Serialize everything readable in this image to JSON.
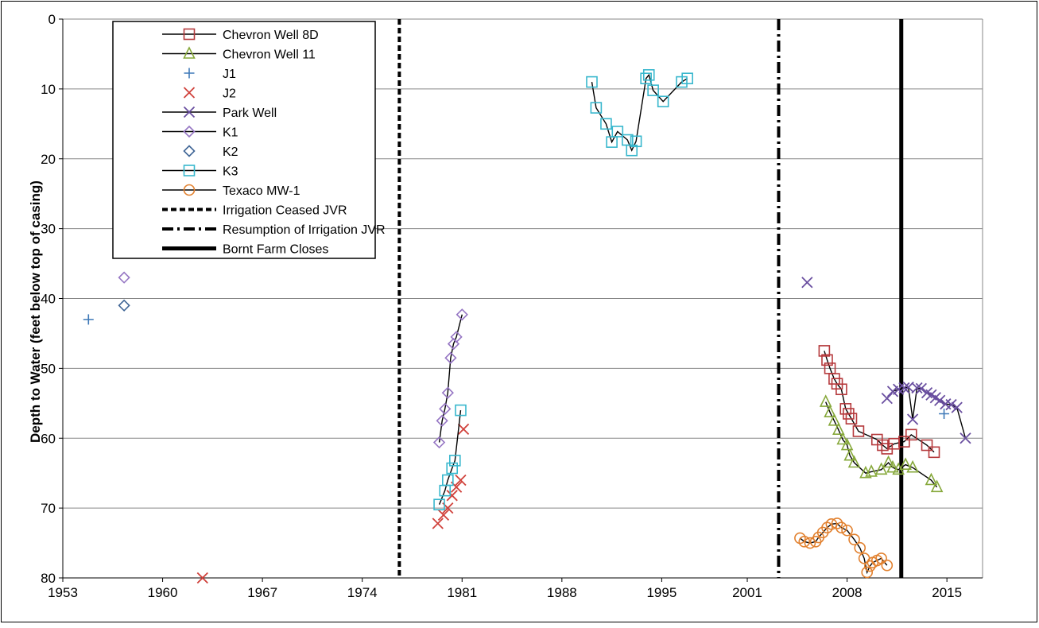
{
  "chart_data": {
    "type": "scatter",
    "title": "",
    "xlabel": "",
    "ylabel": "Depth to Water (feet below top of casing)",
    "xlim": [
      1953,
      2017.5
    ],
    "ylim": [
      80,
      0
    ],
    "x_ticks": [
      1953,
      1960,
      1967,
      1974,
      1981,
      1988,
      1995,
      2001,
      2008,
      2015
    ],
    "x_tick_labels": [
      "1953",
      "1960",
      "1967",
      "1974",
      "1981",
      "1988",
      "1995",
      "2001",
      "2008",
      "2015"
    ],
    "y_ticks": [
      0,
      10,
      20,
      30,
      40,
      50,
      60,
      70,
      80
    ],
    "y_tick_labels": [
      "0",
      "10",
      "20",
      "30",
      "40",
      "50",
      "60",
      "70",
      "80"
    ],
    "grid": "horizontal",
    "legend_position": "top-left",
    "series": [
      {
        "name": "Chevron Well 8D",
        "marker": "square",
        "color": "#b5393c",
        "line": true,
        "points": [
          [
            2006.4,
            47.5
          ],
          [
            2006.6,
            48.8
          ],
          [
            2006.8,
            50.0
          ],
          [
            2007.1,
            51.5
          ],
          [
            2007.3,
            52.2
          ],
          [
            2007.6,
            53.0
          ],
          [
            2007.9,
            55.8
          ],
          [
            2008.1,
            56.5
          ],
          [
            2008.3,
            57.2
          ],
          [
            2008.8,
            59.0
          ],
          [
            2010.1,
            60.2
          ],
          [
            2010.5,
            61.0
          ],
          [
            2010.8,
            61.5
          ],
          [
            2011.3,
            60.8
          ],
          [
            2012.0,
            60.5
          ],
          [
            2012.5,
            59.5
          ],
          [
            2013.6,
            61.0
          ],
          [
            2014.1,
            62.0
          ]
        ]
      },
      {
        "name": "Chevron Well 11",
        "marker": "triangle",
        "color": "#86a83a",
        "line": true,
        "points": [
          [
            2006.5,
            54.8
          ],
          [
            2006.8,
            56.3
          ],
          [
            2007.1,
            57.5
          ],
          [
            2007.4,
            58.8
          ],
          [
            2007.7,
            60.2
          ],
          [
            2008.0,
            61.0
          ],
          [
            2008.2,
            62.5
          ],
          [
            2008.5,
            63.5
          ],
          [
            2009.3,
            65.0
          ],
          [
            2009.7,
            64.8
          ],
          [
            2010.4,
            64.5
          ],
          [
            2010.9,
            63.5
          ],
          [
            2011.2,
            64.2
          ],
          [
            2011.6,
            64.5
          ],
          [
            2012.1,
            63.8
          ],
          [
            2012.6,
            64.2
          ],
          [
            2013.9,
            66.0
          ],
          [
            2014.3,
            67.0
          ]
        ]
      },
      {
        "name": "J1",
        "marker": "plus",
        "color": "#3f79b8",
        "line": false,
        "points": [
          [
            1954.8,
            43.0
          ],
          [
            2014.8,
            56.5
          ]
        ]
      },
      {
        "name": "J2",
        "marker": "x",
        "color": "#d0413b",
        "line": false,
        "points": [
          [
            1962.8,
            80.0
          ],
          [
            1979.3,
            72.2
          ],
          [
            1979.7,
            71.0
          ],
          [
            1980.0,
            70.0
          ],
          [
            1980.3,
            68.2
          ],
          [
            1980.6,
            67.0
          ],
          [
            1980.9,
            66.0
          ],
          [
            1981.1,
            58.7
          ]
        ]
      },
      {
        "name": "Park Well",
        "marker": "x",
        "color": "#6a4fa0",
        "line": true,
        "points": [
          [
            2005.2,
            37.7
          ],
          [
            2010.8,
            54.3
          ],
          [
            2011.2,
            53.3
          ],
          [
            2011.6,
            53.0
          ],
          [
            2012.0,
            52.8
          ],
          [
            2012.3,
            52.7
          ],
          [
            2012.6,
            57.3
          ],
          [
            2012.9,
            52.8
          ],
          [
            2013.2,
            52.9
          ],
          [
            2013.6,
            53.5
          ],
          [
            2013.9,
            53.8
          ],
          [
            2014.2,
            54.2
          ],
          [
            2014.5,
            54.6
          ],
          [
            2014.9,
            55.1
          ],
          [
            2015.3,
            55.2
          ],
          [
            2015.7,
            55.6
          ],
          [
            2016.3,
            60.0
          ]
        ]
      },
      {
        "name": "K1",
        "marker": "diamond",
        "color": "#9575c3",
        "line": true,
        "points": [
          [
            1957.3,
            37.0
          ],
          [
            1979.4,
            60.6
          ],
          [
            1979.6,
            57.5
          ],
          [
            1979.8,
            55.8
          ],
          [
            1980.0,
            53.5
          ],
          [
            1980.2,
            48.5
          ],
          [
            1980.4,
            46.5
          ],
          [
            1980.6,
            45.5
          ],
          [
            1981.0,
            42.3
          ]
        ]
      },
      {
        "name": "K2",
        "marker": "diamond",
        "color": "#3e6495",
        "line": false,
        "points": [
          [
            1957.3,
            41.0
          ]
        ]
      },
      {
        "name": "K3",
        "marker": "square",
        "color": "#38b7cd",
        "line": true,
        "points": [
          [
            1979.4,
            69.5
          ],
          [
            1979.8,
            67.5
          ],
          [
            1980.0,
            66.0
          ],
          [
            1980.3,
            64.3
          ],
          [
            1980.5,
            63.2
          ],
          [
            1980.9,
            56.0
          ],
          [
            1990.1,
            9.0
          ],
          [
            1990.4,
            12.7
          ],
          [
            1991.1,
            15.0
          ],
          [
            1991.5,
            17.6
          ],
          [
            1991.9,
            16.1
          ],
          [
            1992.6,
            17.3
          ],
          [
            1992.9,
            18.8
          ],
          [
            1993.2,
            17.5
          ],
          [
            1993.9,
            8.5
          ],
          [
            1994.1,
            8.0
          ],
          [
            1994.4,
            10.2
          ],
          [
            1995.1,
            11.8
          ],
          [
            1996.4,
            9.0
          ],
          [
            1996.8,
            8.5
          ]
        ]
      },
      {
        "name": "Texaco MW-1",
        "marker": "circle",
        "color": "#e2812f",
        "line": true,
        "points": [
          [
            2004.7,
            74.3
          ],
          [
            2005.0,
            74.8
          ],
          [
            2005.4,
            75.0
          ],
          [
            2005.8,
            74.8
          ],
          [
            2006.0,
            74.2
          ],
          [
            2006.3,
            73.5
          ],
          [
            2006.6,
            72.8
          ],
          [
            2006.9,
            72.3
          ],
          [
            2007.3,
            72.2
          ],
          [
            2007.6,
            72.8
          ],
          [
            2008.0,
            73.2
          ],
          [
            2008.5,
            74.5
          ],
          [
            2008.9,
            75.7
          ],
          [
            2009.2,
            77.2
          ],
          [
            2009.4,
            79.2
          ],
          [
            2009.6,
            78.3
          ],
          [
            2009.8,
            77.8
          ],
          [
            2010.1,
            77.5
          ],
          [
            2010.4,
            77.2
          ],
          [
            2010.8,
            78.2
          ]
        ]
      }
    ],
    "vertical_markers": [
      {
        "name": "Irrigation Ceased JVR",
        "x": 1976.6,
        "style": "dashed"
      },
      {
        "name": "Resumption of Irrigation JVR",
        "x": 2003.2,
        "style": "dash-dot"
      },
      {
        "name": "Bornt Farm Closes",
        "x": 2011.8,
        "style": "solid"
      }
    ]
  }
}
